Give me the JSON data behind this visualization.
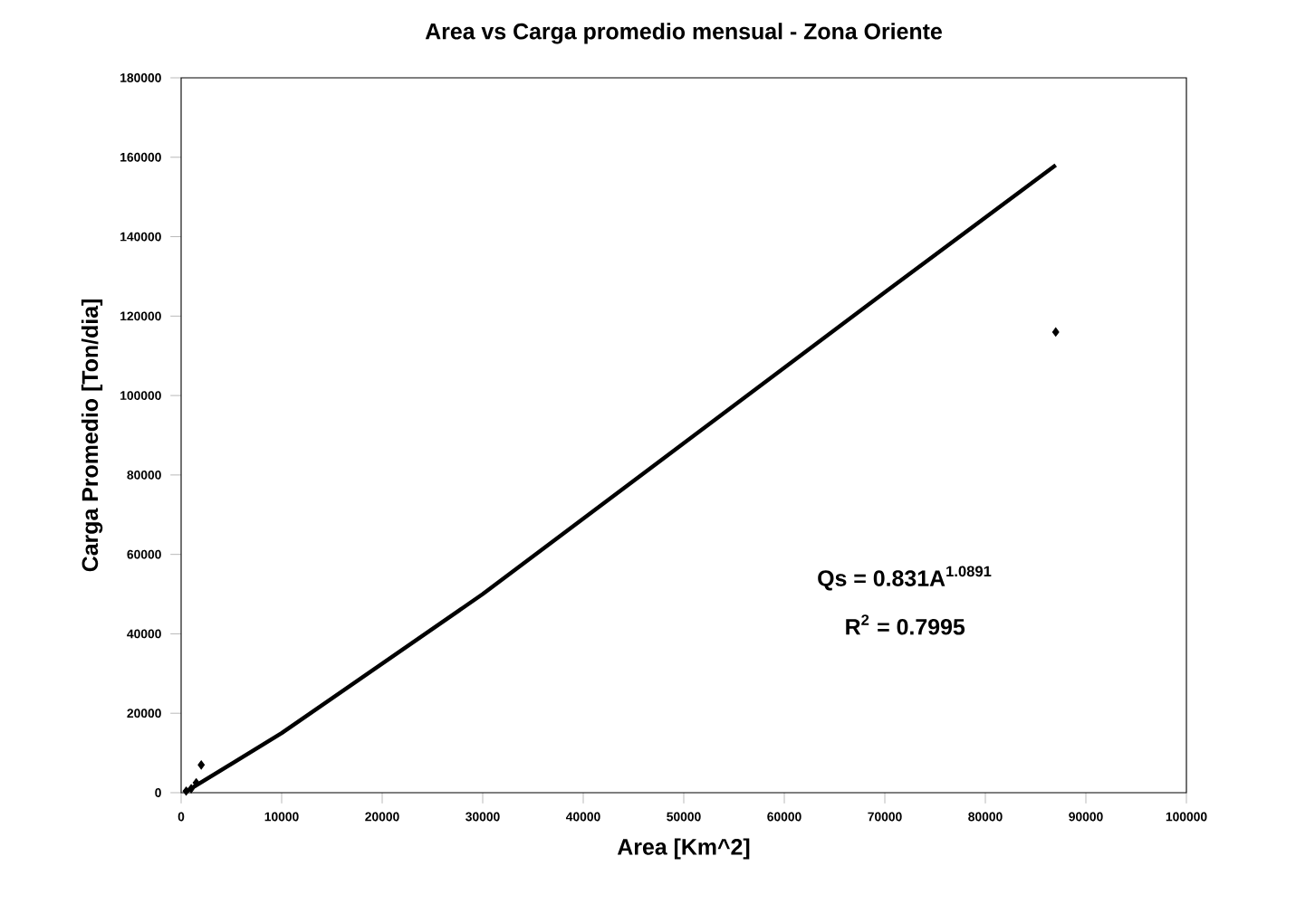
{
  "chart_data": {
    "type": "scatter",
    "title": "Area vs Carga promedio mensual - Zona Oriente",
    "xlabel": "Area [Km^2]",
    "ylabel": "Carga Promedio [Ton/dia]",
    "series": [
      {
        "color": "#000000",
        "marker": "diamond",
        "x": [
          500,
          1000,
          1500,
          2000,
          87000
        ],
        "values": [
          400,
          1000,
          2500,
          7000,
          116000
        ]
      },
      {
        "type": "line",
        "color": "#000000",
        "line_style": "solid",
        "marker": "none",
        "x": [
          500,
          10000,
          30000,
          50000,
          70000,
          87000
        ],
        "values": [
          300,
          15000,
          50000,
          88000,
          126000,
          158000
        ]
      }
    ],
    "annotations": [
      "Qs = 0.831A$^{1.0891}$",
      "R$^{2}$ = 0.7995"
    ],
    "xlim": [
      0,
      100000
    ],
    "xticks": [
      0,
      10000,
      20000,
      30000,
      40000,
      50000,
      60000,
      70000,
      80000,
      90000,
      100000
    ],
    "ylim": [
      0,
      180000
    ],
    "yticks": [
      0,
      20000,
      40000,
      60000,
      80000,
      100000,
      120000,
      140000,
      160000,
      180000
    ],
    "grid": false
  }
}
